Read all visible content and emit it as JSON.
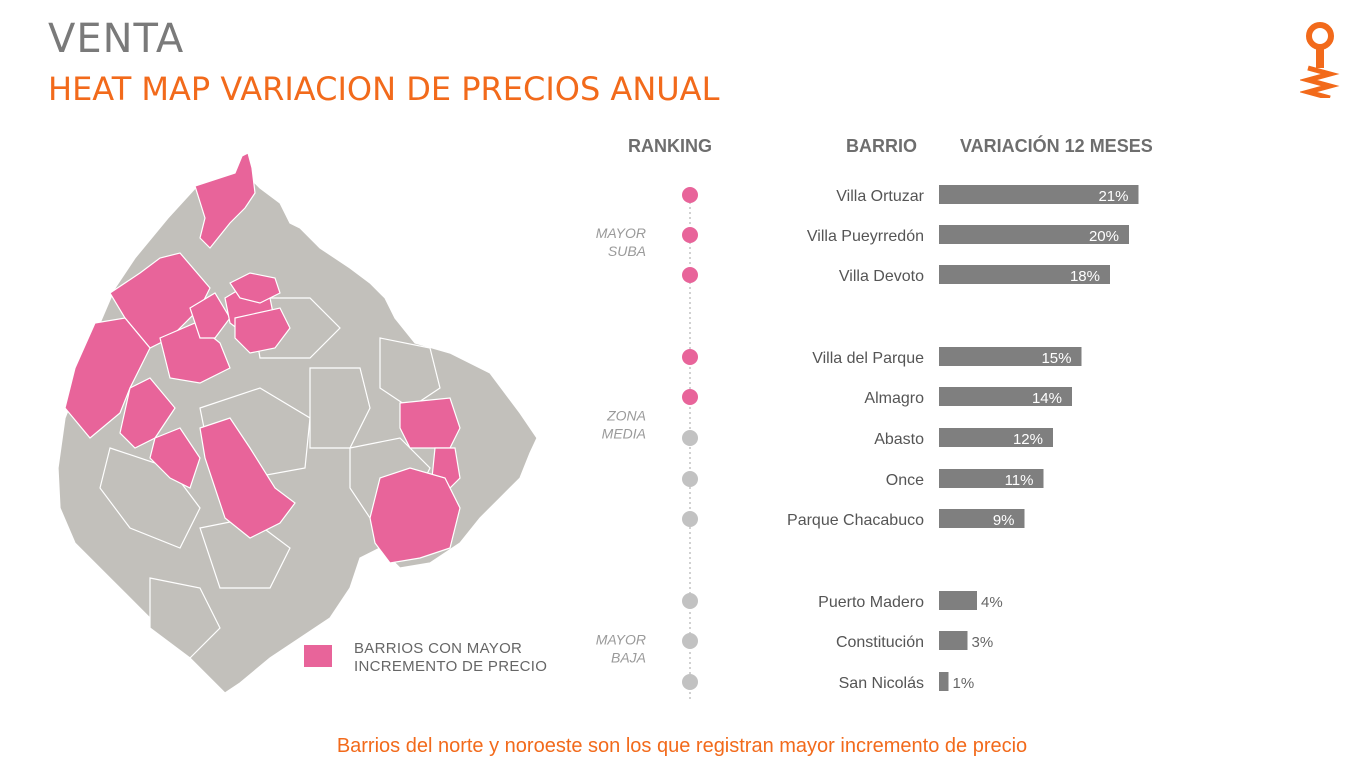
{
  "header": {
    "title": "VENTA",
    "subtitle": "HEAT MAP VARIACION DE PRECIOS ANUAL"
  },
  "logo": {
    "icon": "key-logo-icon",
    "color": "#f26a1b"
  },
  "map": {
    "legend_label_line1": "BARRIOS CON MAYOR",
    "legend_label_line2": "INCREMENTO DE PRECIO",
    "colors": {
      "base": "#c2c0bb",
      "highlight": "#e8649a",
      "border": "#ffffff"
    }
  },
  "columns": {
    "ranking": "RANKING",
    "barrio": "BARRIO",
    "variacion": "VARIACIÓN 12 MESES"
  },
  "groups": [
    {
      "line1": "MAYOR",
      "line2": "SUBA"
    },
    {
      "line1": "ZONA",
      "line2": "MEDIA"
    },
    {
      "line1": "MAYOR",
      "line2": "BAJA"
    }
  ],
  "chart_data": {
    "type": "bar",
    "orientation": "horizontal",
    "categories": [
      "Villa Ortuzar",
      "Villa Pueyrredón",
      "Villa Devoto",
      "Villa del Parque",
      "Almagro",
      "Abasto",
      "Once",
      "Parque Chacabuco",
      "Puerto Madero",
      "Constitución",
      "San Nicolás"
    ],
    "values": [
      21,
      20,
      18,
      15,
      14,
      12,
      11,
      9,
      4,
      3,
      1
    ],
    "labels": [
      "21%",
      "20%",
      "18%",
      "15%",
      "14%",
      "12%",
      "11%",
      "9%",
      "4%",
      "3%",
      "1%"
    ],
    "group_index": [
      0,
      0,
      0,
      1,
      1,
      1,
      1,
      1,
      2,
      2,
      2
    ],
    "highlighted": [
      true,
      true,
      true,
      true,
      true,
      false,
      false,
      false,
      false,
      false,
      false
    ],
    "bar_color": "#7f7f7f",
    "dot_color_highlight": "#e8649a",
    "dot_color_default": "#c2c2c2"
  },
  "footer": {
    "text": "Barrios del norte y noroeste son los que registran mayor incremento de precio"
  }
}
